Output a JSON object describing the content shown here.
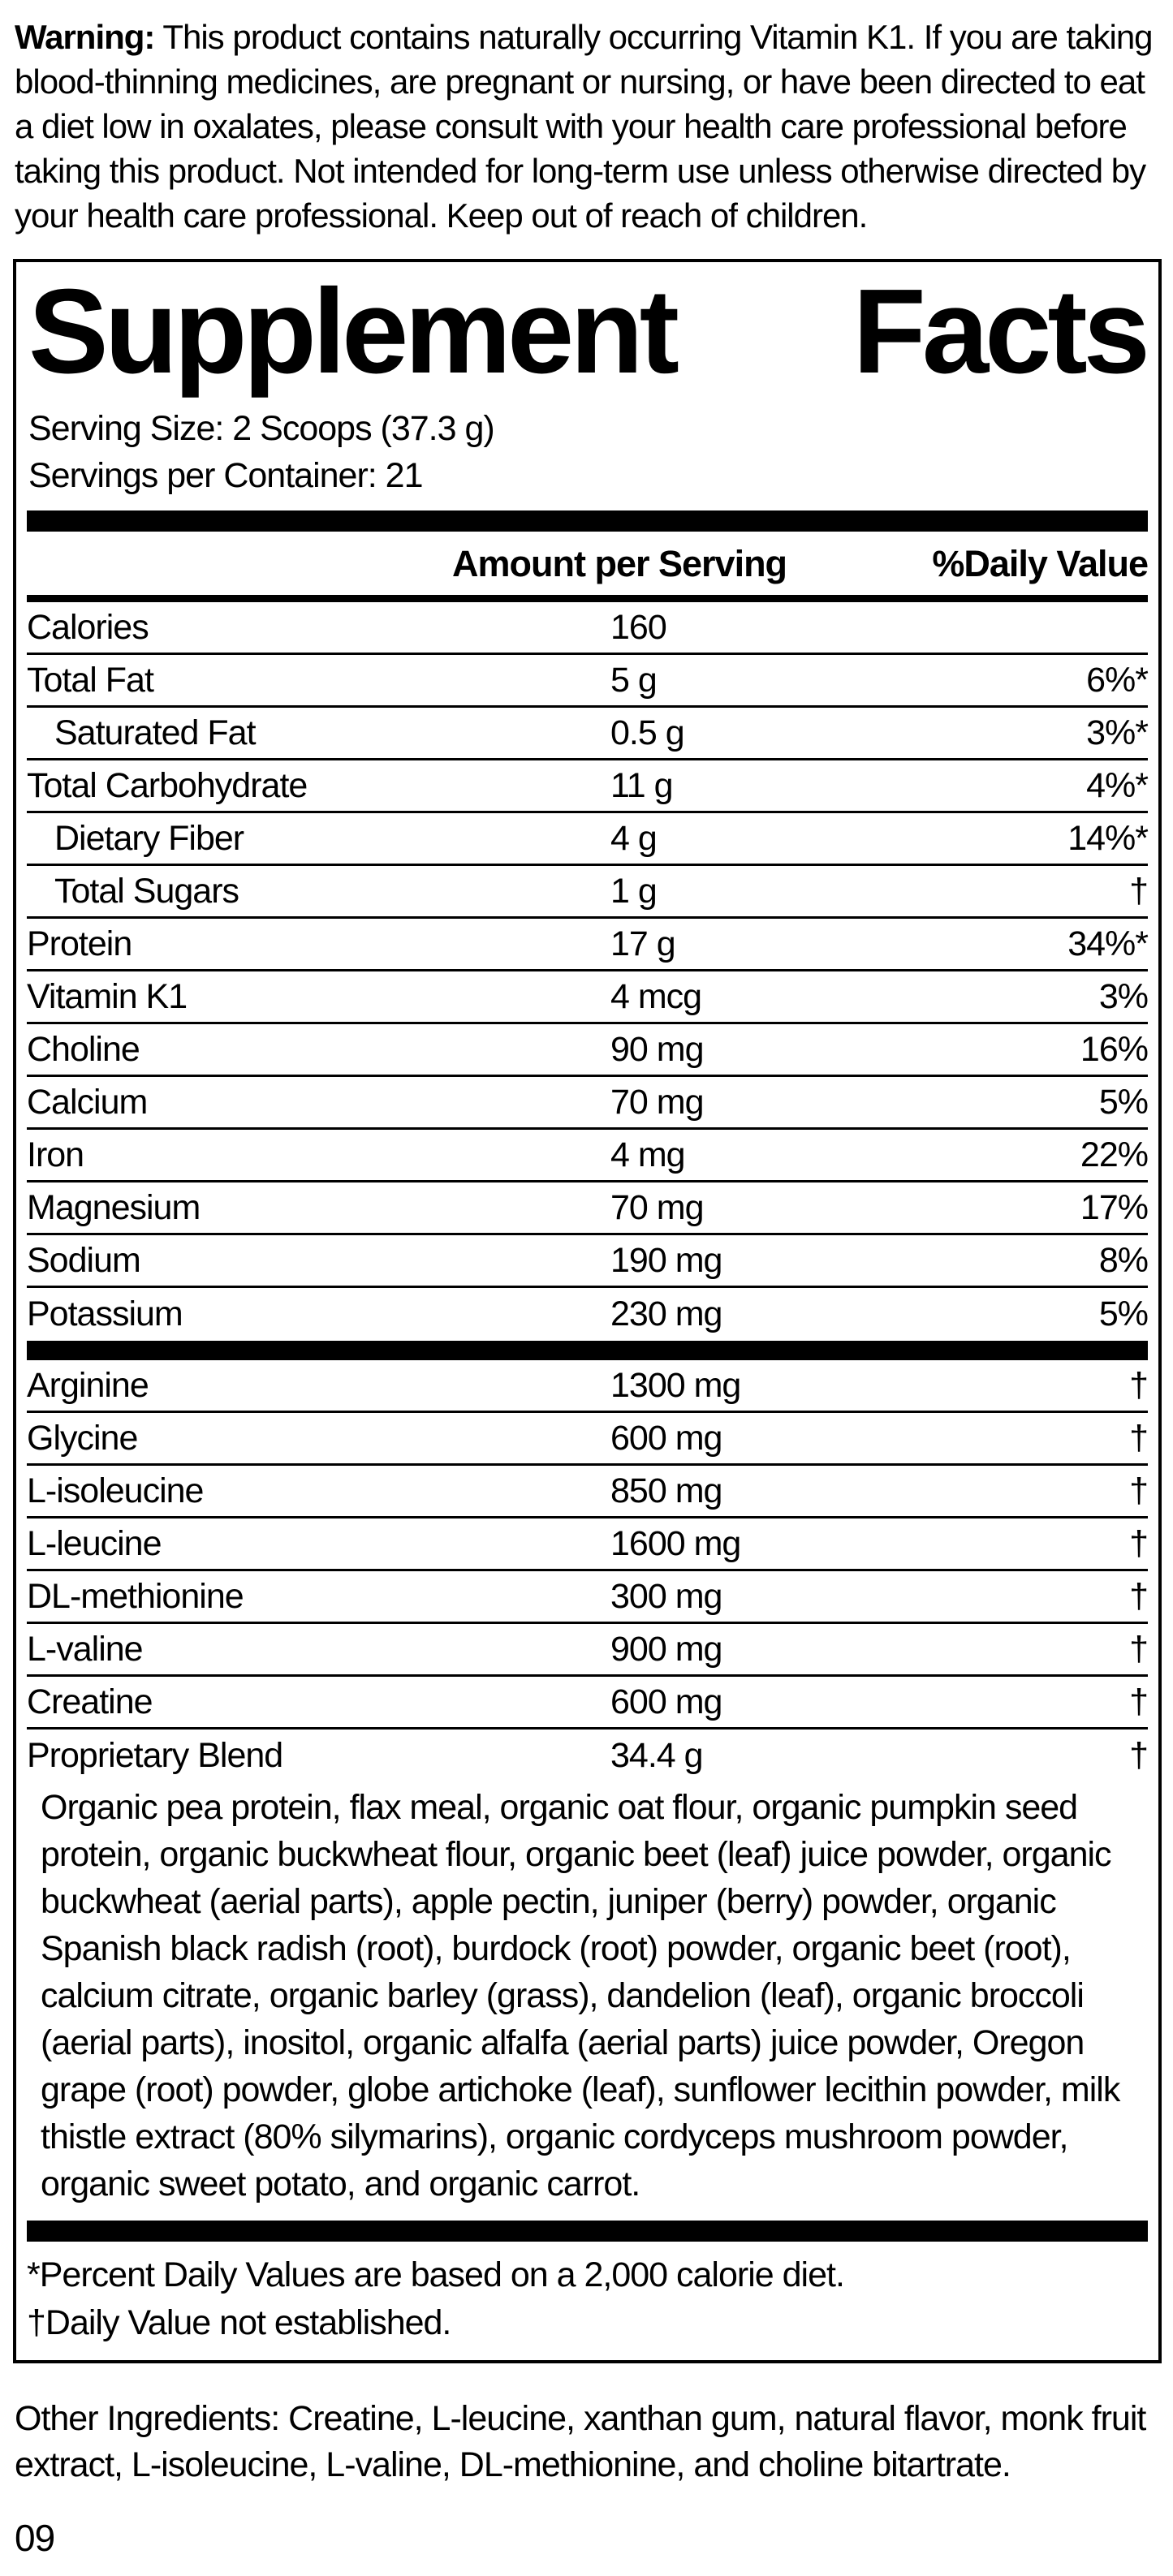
{
  "warning": {
    "label": "Warning:",
    "text": " This product contains naturally occurring Vitamin K1. If you are taking blood-thinning medicines, are pregnant or nursing, or have been directed to eat a diet low in oxalates, please consult with your health care professional before taking this product. Not intended for long-term use unless otherwise directed by your health care professional. Keep out of reach of children."
  },
  "panel": {
    "title_word1": "Supplement",
    "title_word2": "Facts",
    "serving_size": "Serving Size: 2 Scoops (37.3 g)",
    "servings_per_container": "Servings per Container: 21",
    "column_headers": {
      "amount": "Amount per Serving",
      "daily_value": "%Daily Value"
    },
    "nutrients": [
      {
        "name": "Calories",
        "amount": "160",
        "dv": ""
      },
      {
        "name": "Total Fat",
        "amount": "5 g",
        "dv": "6%*"
      },
      {
        "name": "Saturated Fat",
        "amount": "0.5 g",
        "dv": "3%*",
        "indent": true
      },
      {
        "name": "Total Carbohydrate",
        "amount": "11 g",
        "dv": "4%*"
      },
      {
        "name": "Dietary Fiber",
        "amount": "4 g",
        "dv": "14%*",
        "indent": true
      },
      {
        "name": "Total Sugars",
        "amount": "1 g",
        "dv": "†",
        "indent": true
      },
      {
        "name": "Protein",
        "amount": "17 g",
        "dv": "34%*"
      },
      {
        "name": "Vitamin K1",
        "amount": "4 mcg",
        "dv": "3%"
      },
      {
        "name": "Choline",
        "amount": "90 mg",
        "dv": "16%"
      },
      {
        "name": "Calcium",
        "amount": "70 mg",
        "dv": "5%"
      },
      {
        "name": "Iron",
        "amount": "4 mg",
        "dv": "22%"
      },
      {
        "name": "Magnesium",
        "amount": "70 mg",
        "dv": "17%"
      },
      {
        "name": "Sodium",
        "amount": "190 mg",
        "dv": "8%"
      },
      {
        "name": "Potassium",
        "amount": "230 mg",
        "dv": "5%"
      }
    ],
    "amino_acids": [
      {
        "name": "Arginine",
        "amount": "1300 mg",
        "dv": "†"
      },
      {
        "name": "Glycine",
        "amount": "600 mg",
        "dv": "†"
      },
      {
        "name": "L-isoleucine",
        "amount": "850 mg",
        "dv": "†"
      },
      {
        "name": "L-leucine",
        "amount": "1600 mg",
        "dv": "†"
      },
      {
        "name": "DL-methionine",
        "amount": "300 mg",
        "dv": "†"
      },
      {
        "name": "L-valine",
        "amount": "900 mg",
        "dv": "†"
      },
      {
        "name": "Creatine",
        "amount": "600 mg",
        "dv": "†"
      }
    ],
    "proprietary_blend": {
      "name": "Proprietary Blend",
      "amount": "34.4 g",
      "dv": "†",
      "description": "Organic pea protein, flax meal, organic oat flour, organic pumpkin seed protein, organic buckwheat flour, organic beet (leaf) juice powder, organic buckwheat (aerial parts), apple pectin, juniper (berry) powder, organic Spanish black radish (root), burdock (root) powder, organic beet (root), calcium citrate, organic barley (grass), dandelion (leaf), organic broccoli (aerial parts), inositol, organic alfalfa (aerial parts) juice powder, Oregon grape (root) powder, globe artichoke (leaf), sunflower lecithin powder, milk thistle extract (80% silymarins), organic cordyceps mushroom powder, organic sweet potato, and organic carrot."
    },
    "footnotes": [
      "*Percent Daily Values are based on a 2,000 calorie diet.",
      "†Daily Value not established."
    ]
  },
  "other_ingredients": "Other Ingredients: Creatine, L-leucine, xanthan gum, natural flavor, monk fruit extract, L-isoleucine, L-valine, DL-methionine, and choline bitartrate.",
  "footer_code": "09",
  "colors": {
    "ink": "#000000",
    "paper": "#ffffff"
  }
}
